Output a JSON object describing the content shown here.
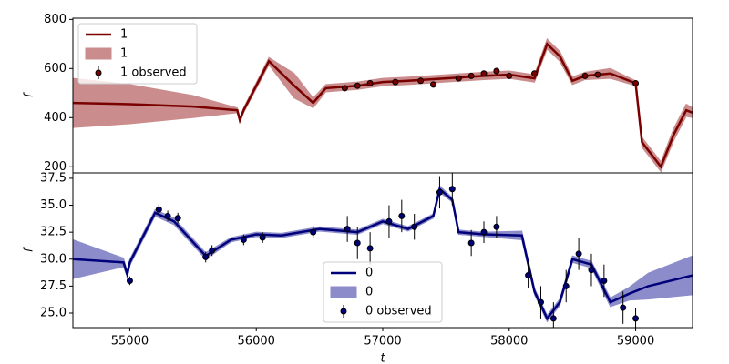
{
  "chart_data": [
    {
      "type": "line",
      "ylabel": "f",
      "legend": "upper left",
      "xlim": [
        54550,
        59450
      ],
      "ylim": [
        175,
        805
      ],
      "yticks": [
        200,
        400,
        600,
        800
      ],
      "line": {
        "name": "1",
        "color": "#7a0000",
        "x": [
          54550,
          55000,
          55500,
          55850,
          55870,
          55900,
          56100,
          56300,
          56450,
          56550,
          56800,
          57000,
          57200,
          57500,
          57800,
          58000,
          58200,
          58300,
          58400,
          58500,
          58600,
          58800,
          59000,
          59050,
          59200,
          59300,
          59400,
          59450
        ],
        "values": [
          460,
          455,
          445,
          430,
          390,
          430,
          630,
          530,
          460,
          520,
          530,
          545,
          550,
          560,
          570,
          575,
          560,
          700,
          650,
          550,
          570,
          580,
          540,
          300,
          200,
          330,
          430,
          420
        ]
      },
      "band": {
        "name": "1",
        "color": "#a03030",
        "lower": [
          360,
          375,
          400,
          420,
          380,
          420,
          615,
          480,
          440,
          505,
          515,
          530,
          535,
          545,
          555,
          560,
          545,
          680,
          630,
          535,
          555,
          560,
          530,
          280,
          180,
          305,
          405,
          400
        ],
        "upper": [
          560,
          535,
          490,
          440,
          400,
          440,
          645,
          580,
          480,
          535,
          545,
          560,
          565,
          575,
          585,
          590,
          575,
          720,
          670,
          565,
          585,
          600,
          550,
          320,
          220,
          355,
          455,
          440
        ]
      },
      "observed": {
        "name": "1 observed",
        "color": "#7a0000",
        "x": [
          56700,
          56800,
          56900,
          57100,
          57300,
          57400,
          57600,
          57700,
          57800,
          57900,
          58000,
          58200,
          58600,
          58700,
          59000
        ],
        "values": [
          520,
          530,
          540,
          545,
          550,
          535,
          560,
          570,
          580,
          590,
          570,
          580,
          570,
          575,
          540
        ],
        "errors": [
          10,
          10,
          10,
          10,
          10,
          10,
          10,
          10,
          10,
          10,
          10,
          10,
          10,
          10,
          10
        ]
      }
    },
    {
      "type": "line",
      "ylabel": "f",
      "xlabel": "t",
      "legend": "lower center",
      "xlim": [
        54550,
        59450
      ],
      "ylim": [
        23.65,
        38.0
      ],
      "xticks": [
        55000,
        56000,
        57000,
        58000,
        59000
      ],
      "yticks": [
        {
          "value": 25,
          "label": "25.0"
        },
        {
          "value": 27.5,
          "label": "27.5"
        },
        {
          "value": 30,
          "label": "30.0"
        },
        {
          "value": 32.5,
          "label": "32.5"
        },
        {
          "value": 35,
          "label": "35.0"
        },
        {
          "value": 37.5,
          "label": "37.5"
        }
      ],
      "line": {
        "name": "0",
        "color": "#00007a",
        "x": [
          54550,
          54950,
          54980,
          55000,
          55200,
          55350,
          55600,
          55800,
          56000,
          56200,
          56500,
          56800,
          57000,
          57200,
          57400,
          57450,
          57550,
          57600,
          57800,
          58100,
          58200,
          58300,
          58400,
          58500,
          58650,
          58800,
          58950,
          59100,
          59450
        ],
        "values": [
          30.0,
          29.7,
          28.6,
          29.7,
          34.3,
          33.5,
          30.3,
          31.8,
          32.3,
          32.2,
          32.8,
          32.5,
          33.5,
          32.8,
          34.0,
          36.5,
          35.5,
          32.5,
          32.3,
          32.2,
          27.0,
          24.5,
          26.0,
          30.0,
          29.5,
          26.0,
          26.8,
          27.5,
          28.5
        ]
      },
      "band": {
        "name": "0",
        "color": "#3030a0",
        "lower": [
          28.2,
          29.3,
          28.3,
          29.4,
          34.0,
          33.2,
          30.0,
          31.6,
          32.1,
          32.0,
          32.6,
          32.3,
          33.3,
          32.6,
          33.8,
          36.2,
          35.3,
          32.3,
          32.1,
          31.8,
          26.7,
          24.2,
          25.7,
          29.7,
          29.2,
          25.6,
          26.2,
          26.3,
          26.7
        ],
        "upper": [
          31.8,
          30.1,
          28.9,
          30.0,
          34.6,
          33.8,
          30.6,
          32.0,
          32.5,
          32.4,
          33.0,
          32.7,
          33.7,
          33.0,
          34.2,
          36.8,
          35.7,
          32.7,
          32.5,
          32.6,
          27.3,
          24.8,
          26.3,
          30.3,
          29.8,
          26.4,
          27.4,
          28.7,
          30.3
        ]
      },
      "observed": {
        "name": "0 observed",
        "color": "#00007a",
        "x": [
          55000,
          55230,
          55300,
          55380,
          55600,
          55650,
          55900,
          56050,
          56450,
          56720,
          56800,
          56900,
          57050,
          57150,
          57250,
          57450,
          57550,
          57700,
          57800,
          57900,
          58150,
          58250,
          58350,
          58450,
          58550,
          58650,
          58750,
          58900,
          59000
        ],
        "values": [
          28.0,
          34.6,
          34.0,
          33.8,
          30.2,
          30.8,
          31.8,
          32.0,
          32.5,
          32.8,
          31.5,
          31.0,
          33.5,
          34.0,
          33.0,
          36.2,
          36.5,
          31.5,
          32.5,
          33.0,
          28.5,
          26.0,
          24.5,
          27.5,
          30.5,
          29.0,
          28.0,
          25.5,
          24.5
        ],
        "errors": [
          0.4,
          0.5,
          0.5,
          0.5,
          0.5,
          0.5,
          0.5,
          0.5,
          0.6,
          1.2,
          1.5,
          1.5,
          1.5,
          1.5,
          1.2,
          1.5,
          1.5,
          1.2,
          1.0,
          1.0,
          1.2,
          1.5,
          1.5,
          1.5,
          1.5,
          1.5,
          1.5,
          1.5,
          1.0
        ]
      }
    }
  ]
}
